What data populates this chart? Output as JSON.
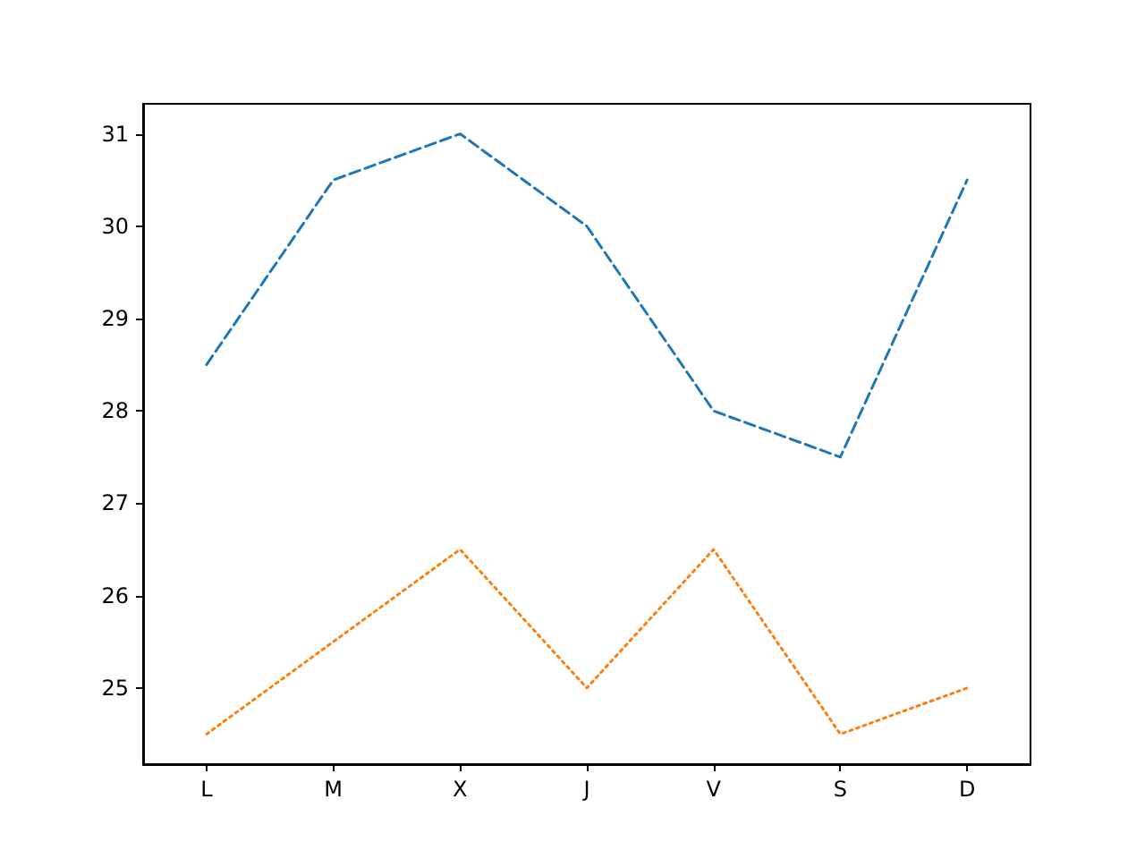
{
  "chart_data": {
    "type": "line",
    "categories": [
      "L",
      "M",
      "X",
      "J",
      "V",
      "S",
      "D"
    ],
    "series": [
      {
        "color": "#1f77b4",
        "line_style": "dashed",
        "values": [
          28.5,
          30.5,
          31,
          30,
          28,
          27.5,
          30.5
        ]
      },
      {
        "color": "#ff7f0e",
        "line_style": "dotted",
        "values": [
          24.5,
          25.5,
          26.5,
          25,
          26.5,
          24.5,
          25
        ]
      }
    ],
    "ylim": [
      24.175,
      31.325
    ],
    "yticks": [
      25,
      26,
      27,
      28,
      29,
      30,
      31
    ],
    "grid": false,
    "marker": "none"
  }
}
